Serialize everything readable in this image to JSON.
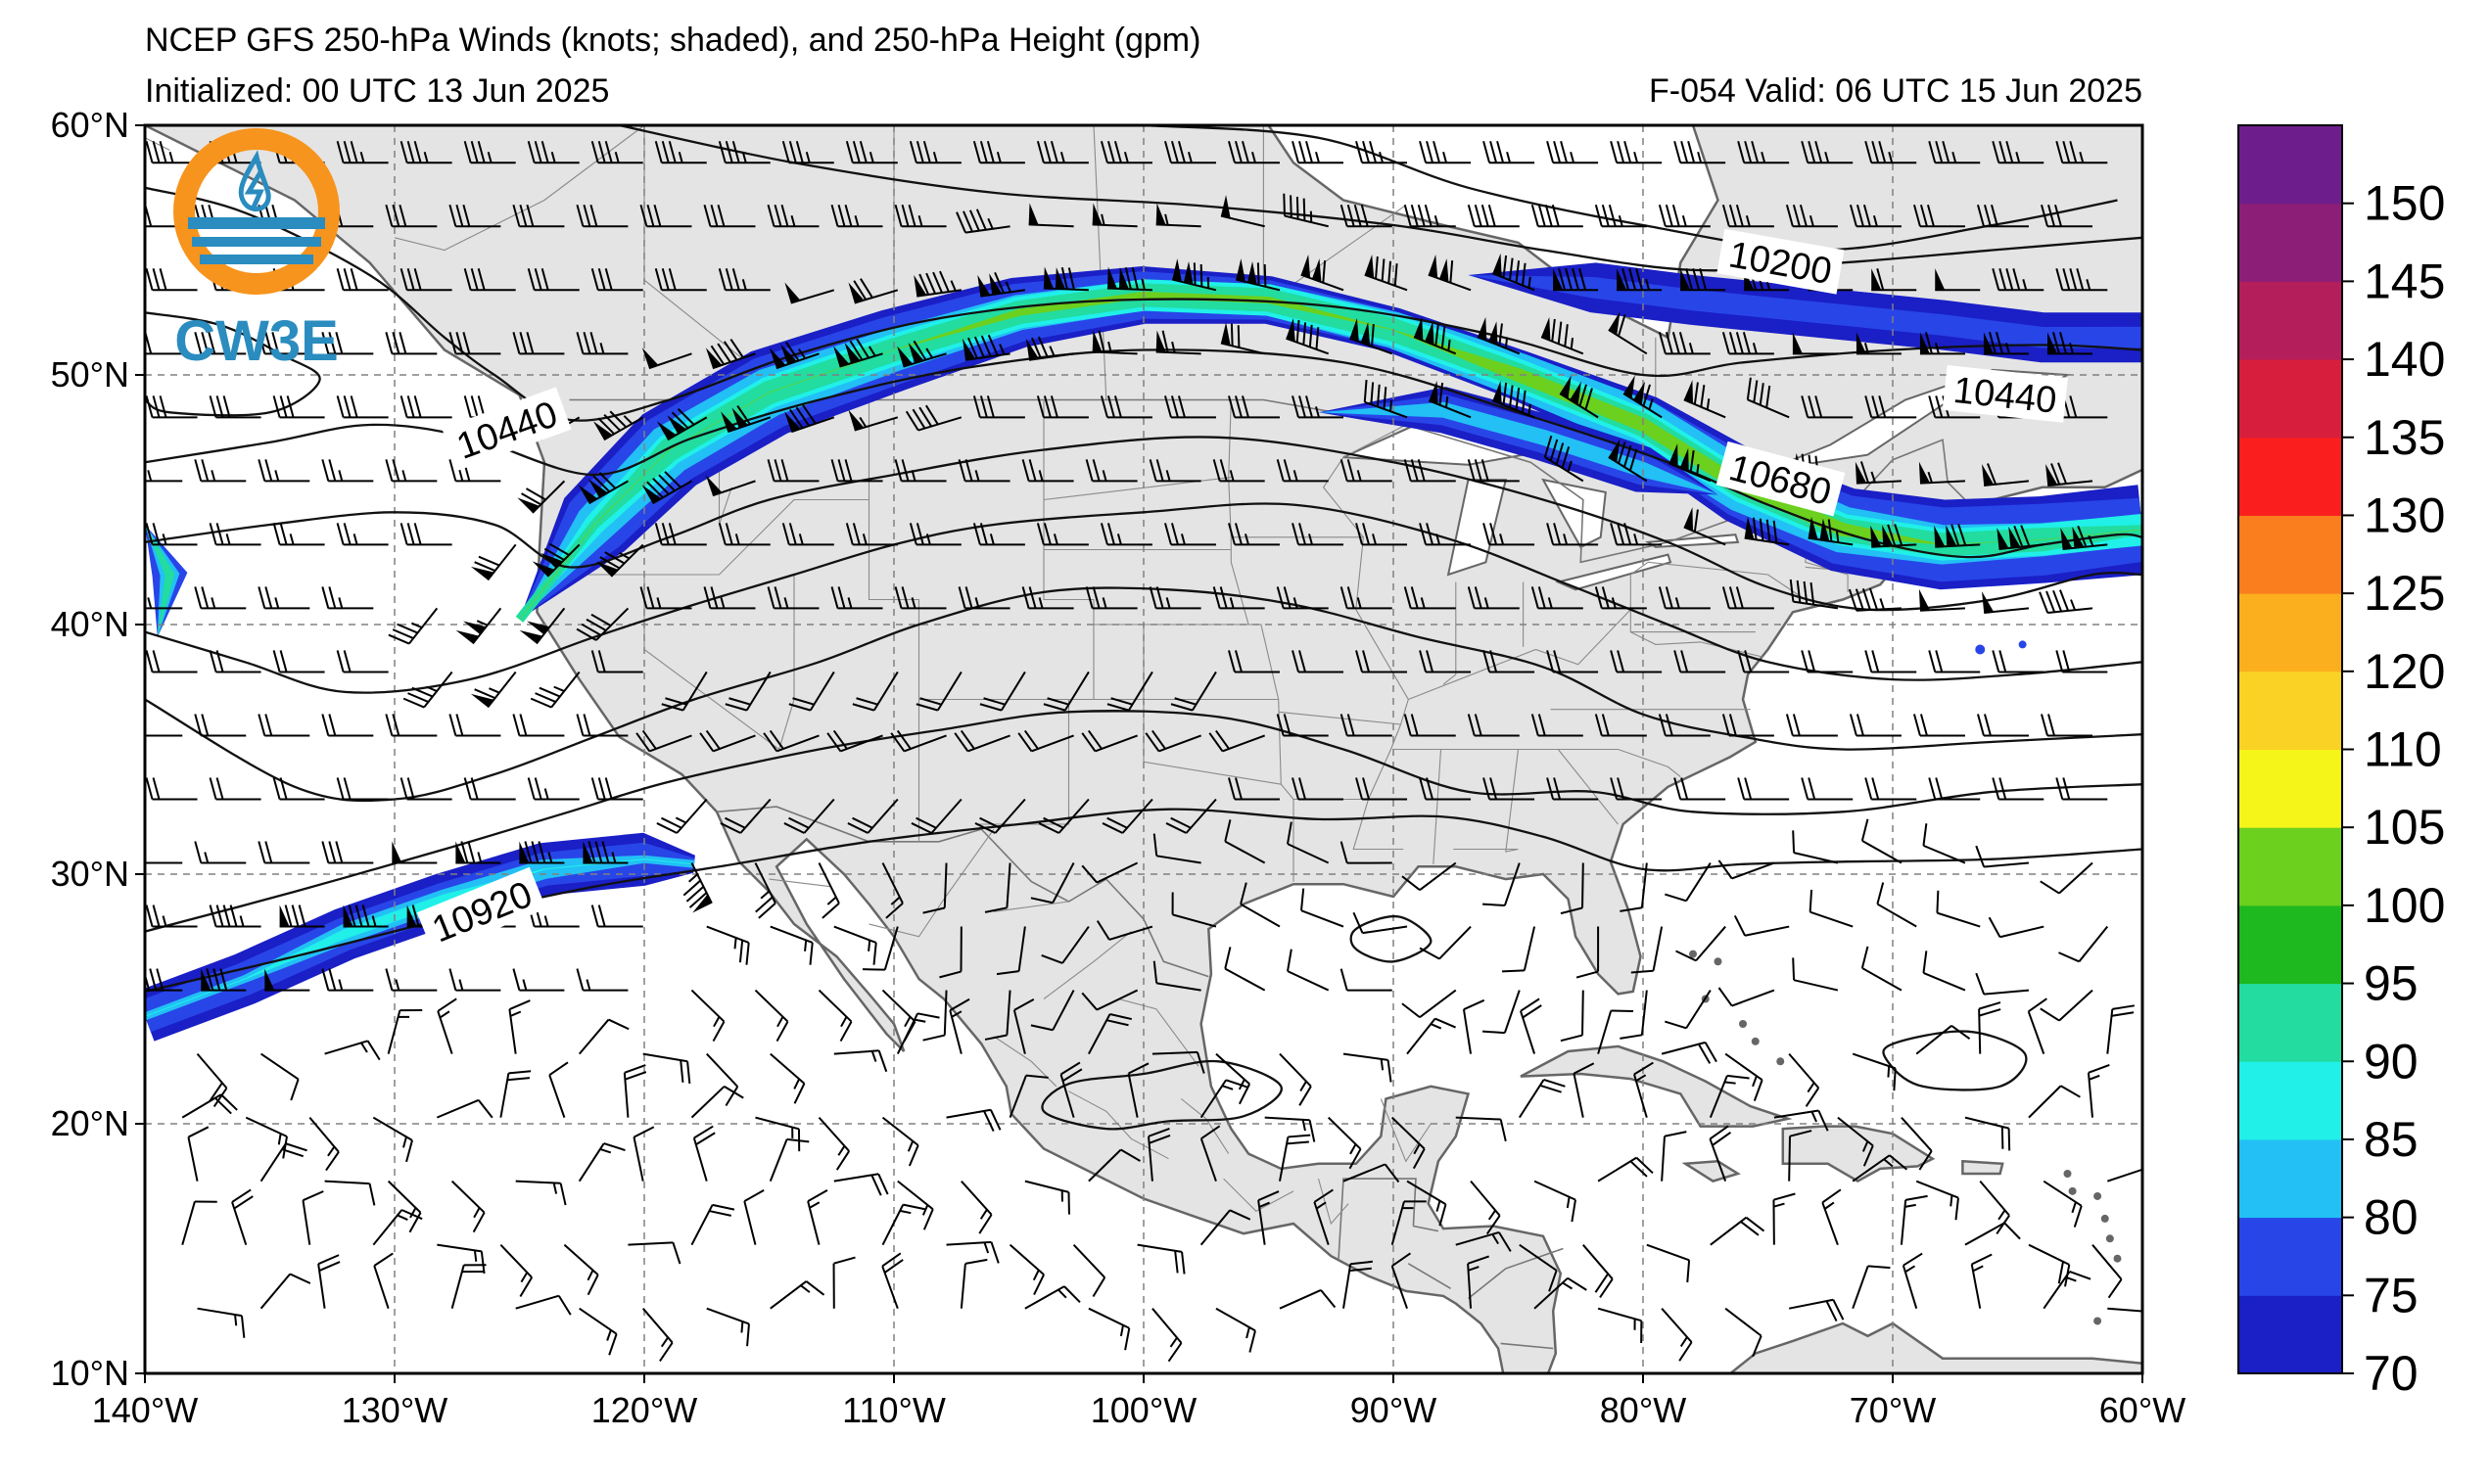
{
  "header": {
    "title": "NCEP GFS 250-hPa Winds (knots; shaded), and 250-hPa Height (gpm)",
    "initialized": "Initialized: 00 UTC 13 Jun 2025",
    "valid": "F-054  Valid: 06 UTC 15 Jun 2025"
  },
  "logo": {
    "text": "CW3E",
    "colors": {
      "ring": "#f7941d",
      "water": "#2a8cbf",
      "text": "#2a8cbf"
    }
  },
  "map": {
    "lon_range": [
      -140,
      -60
    ],
    "lat_range": [
      10,
      60
    ],
    "lon_ticks": [
      "140°W",
      "130°W",
      "120°W",
      "110°W",
      "100°W",
      "90°W",
      "80°W",
      "70°W",
      "60°W"
    ],
    "lat_ticks": [
      "10°N",
      "20°N",
      "30°N",
      "40°N",
      "50°N",
      "60°N"
    ],
    "land_color": "#e4e4e4",
    "grid": "dashed"
  },
  "contours": {
    "labels": [
      {
        "text": "10200",
        "lon": -74.5,
        "lat": 54.5,
        "rotate": 10
      },
      {
        "text": "10440",
        "lon": -125.5,
        "lat": 47.8,
        "rotate": -20
      },
      {
        "text": "10440",
        "lon": -65.5,
        "lat": 49.2,
        "rotate": 6
      },
      {
        "text": "10680",
        "lon": -74.5,
        "lat": 45.8,
        "rotate": 15
      },
      {
        "text": "10920",
        "lon": -126.5,
        "lat": 28.5,
        "rotate": -22
      }
    ]
  },
  "colorbar": {
    "labels": [
      "70",
      "75",
      "80",
      "85",
      "90",
      "95",
      "100",
      "105",
      "110",
      "120",
      "125",
      "130",
      "135",
      "140",
      "145",
      "150"
    ],
    "colors": [
      "#1a1fc6",
      "#2845e8",
      "#22c0f5",
      "#20f0e8",
      "#22dca0",
      "#1eb91e",
      "#6cd01e",
      "#f5f51a",
      "#fad226",
      "#fcaf1e",
      "#fa7d1e",
      "#fa1e1e",
      "#d71e3c",
      "#b41e5a",
      "#8c1e78",
      "#6e1e8c"
    ]
  }
}
